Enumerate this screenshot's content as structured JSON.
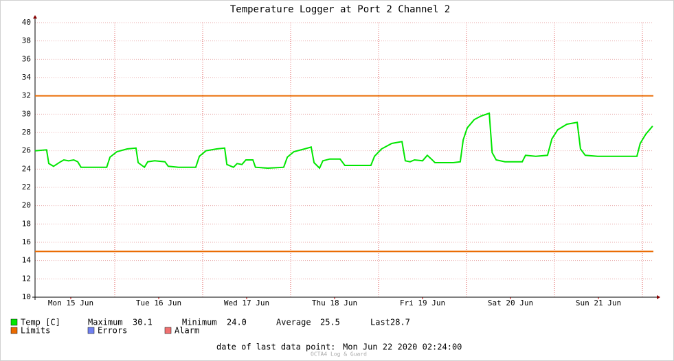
{
  "chart_data": {
    "type": "line",
    "title": "Temperature Logger at Port 2 Channel 2",
    "xlim": [
      2.25,
      171
    ],
    "xticks": [
      {
        "value": 12,
        "label": "Mon 15 Jun"
      },
      {
        "value": 36,
        "label": "Tue 16 Jun"
      },
      {
        "value": 60,
        "label": "Wed 17 Jun"
      },
      {
        "value": 84,
        "label": "Thu 18 Jun"
      },
      {
        "value": 108,
        "label": "Fri 19 Jun"
      },
      {
        "value": 132,
        "label": "Sat 20 Jun"
      },
      {
        "value": 156,
        "label": "Sun 21 Jun"
      }
    ],
    "xgrid": [
      24,
      48,
      72,
      96,
      120,
      144,
      168
    ],
    "ylim": [
      10,
      40
    ],
    "yticks": [
      10,
      12,
      14,
      16,
      18,
      20,
      22,
      24,
      26,
      28,
      30,
      32,
      34,
      36,
      38,
      40
    ],
    "grid": true,
    "series": [
      {
        "name": "Temp [C]",
        "color": "#00e600",
        "x": [
          2.25,
          5.4,
          6.0,
          7.3,
          9.2,
          10.1,
          11.4,
          12.8,
          13.9,
          14.8,
          17.1,
          21.8,
          22.7,
          24.6,
          27.4,
          29.8,
          30.4,
          32.1,
          33.0,
          34.9,
          37.7,
          38.6,
          41.4,
          46.1,
          47.1,
          48.9,
          51.8,
          54.0,
          54.6,
          56.4,
          57.4,
          58.7,
          59.8,
          61.7,
          62.4,
          65.8,
          70.1,
          71.1,
          72.9,
          75.8,
          77.6,
          78.4,
          79.9,
          80.8,
          82.7,
          85.5,
          86.8,
          90.2,
          93.9,
          94.9,
          96.8,
          99.6,
          102.4,
          103.3,
          104.6,
          105.8,
          108.0,
          109.3,
          110.4,
          111.4,
          116.4,
          118.3,
          119.1,
          120.2,
          122.1,
          124.0,
          126.2,
          127.0,
          128.1,
          130.5,
          135.2,
          136.1,
          138.9,
          142.1,
          143.3,
          144.9,
          147.4,
          150.2,
          151.1,
          152.4,
          155.8,
          161.4,
          166.5,
          167.4,
          168.9,
          170.8
        ],
        "values": [
          26.0,
          26.1,
          24.6,
          24.3,
          24.8,
          25.0,
          24.9,
          25.0,
          24.8,
          24.2,
          24.2,
          24.2,
          25.3,
          25.9,
          26.2,
          26.3,
          24.7,
          24.2,
          24.8,
          24.9,
          24.8,
          24.3,
          24.2,
          24.2,
          25.4,
          26.0,
          26.2,
          26.3,
          24.5,
          24.2,
          24.6,
          24.5,
          25.0,
          25.0,
          24.2,
          24.1,
          24.2,
          25.3,
          25.9,
          26.2,
          26.4,
          24.7,
          24.1,
          24.9,
          25.1,
          25.1,
          24.4,
          24.4,
          24.4,
          25.4,
          26.2,
          26.8,
          27.0,
          24.9,
          24.8,
          25.0,
          24.9,
          25.5,
          25.1,
          24.7,
          24.7,
          24.8,
          27.2,
          28.5,
          29.4,
          29.8,
          30.1,
          25.8,
          25.0,
          24.8,
          24.8,
          25.5,
          25.4,
          25.5,
          27.3,
          28.3,
          28.9,
          29.1,
          26.2,
          25.5,
          25.4,
          25.4,
          25.4,
          26.8,
          27.8,
          28.7
        ]
      }
    ],
    "limits": {
      "name": "Limits",
      "color": "#ea6a00",
      "values": [
        15,
        32
      ]
    },
    "legend_extra": [
      {
        "name": "Errors",
        "color": "#7080f0"
      },
      {
        "name": "Alarm",
        "color": "#f07070"
      }
    ],
    "stats": [
      {
        "label": "Maximum",
        "value": "30.1"
      },
      {
        "label": "Minimum",
        "value": "24.0"
      },
      {
        "label": "Average",
        "value": "25.5"
      },
      {
        "label": "Last",
        "value": "28.7"
      }
    ],
    "footer_label": "date of last data point:",
    "last_date": "Mon Jun 22 2020 02:24:00",
    "credit": "OCTA4 Log & Guard"
  }
}
